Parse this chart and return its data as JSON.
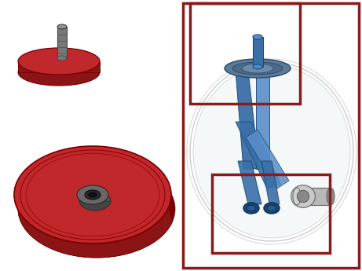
{
  "bg_color": "#ffffff",
  "red_dark": "#8B1515",
  "red_mid": "#C0282B",
  "red_light": "#D93030",
  "red_shade": "#7A0000",
  "blue_main": "#3A6FA8",
  "blue_light": "#5A8FC8",
  "blue_dark": "#1A4A78",
  "gray_bolt": "#787878",
  "gray_bolt_top": "#909090",
  "gray_dark": "#454545",
  "silver": "#B8B8B8",
  "silver_light": "#D0D0D0",
  "silver_dark": "#888888",
  "hub_gray": "#585858",
  "wheel_trans": "#D5E5EE",
  "wheel_outline": "#AAAAAA",
  "box_red": "#8B1A1A"
}
